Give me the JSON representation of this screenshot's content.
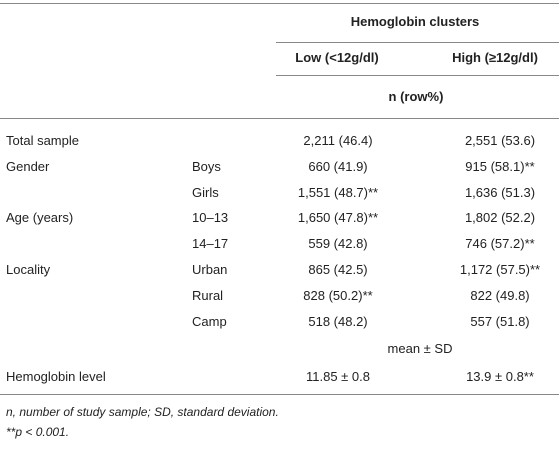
{
  "table": {
    "header": {
      "group": "Hemoglobin clusters",
      "columns": [
        "Low (<12g/dl)",
        "High (≥12g/dl)"
      ],
      "unit": "n (row%)"
    },
    "count_rows": [
      {
        "label": "Total sample",
        "values": [
          "2,211 (46.4)",
          "2,551 (53.6)"
        ]
      },
      {
        "label": "Gender",
        "sublabel": "Boys",
        "values": [
          "660 (41.9)",
          "915 (58.1)**"
        ]
      },
      {
        "sublabel": "Girls",
        "values": [
          "1,551 (48.7)**",
          "1,636 (51.3)"
        ]
      },
      {
        "label": "Age (years)",
        "sublabel": "10–13",
        "values": [
          "1,650 (47.8)**",
          "1,802 (52.2)"
        ]
      },
      {
        "sublabel": "14–17",
        "values": [
          "559 (42.8)",
          "746 (57.2)**"
        ]
      },
      {
        "label": "Locality",
        "sublabel": "Urban",
        "values": [
          "865 (42.5)",
          "1,172 (57.5)**"
        ]
      },
      {
        "sublabel": "Rural",
        "values": [
          "828 (50.2)**",
          "822 (49.8)"
        ]
      },
      {
        "sublabel": "Camp",
        "values": [
          "518 (48.2)",
          "557 (51.8)"
        ]
      }
    ],
    "stat_label": "mean ± SD",
    "stat_rows": [
      {
        "label": "Hemoglobin level",
        "values": [
          "11.85 ± 0.8",
          "13.9 ± 0.8**"
        ]
      }
    ],
    "footnotes": [
      "n, number of study sample; SD, standard deviation.",
      "**p < 0.001."
    ]
  }
}
